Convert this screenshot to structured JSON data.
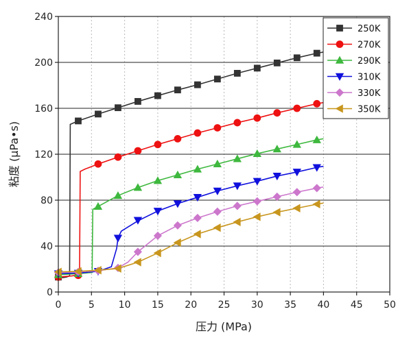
{
  "chart_data": {
    "type": "line",
    "title": "",
    "xlabel": "压力 (MPa)",
    "ylabel": "粘度 (μPa•s)",
    "xlim": [
      0,
      50
    ],
    "ylim": [
      0,
      240
    ],
    "xticks": [
      0,
      5,
      10,
      15,
      20,
      25,
      30,
      35,
      40,
      45,
      50
    ],
    "yticks": [
      0,
      40,
      80,
      120,
      160,
      200,
      240
    ],
    "grid": true,
    "legend_position": "top-right",
    "series": [
      {
        "name": "250K",
        "color": "#333333",
        "marker": "square",
        "line": [
          [
            0,
            12
          ],
          [
            1.2,
            13
          ],
          [
            1.7,
            14
          ],
          [
            1.8,
            146
          ],
          [
            3,
            149
          ],
          [
            6,
            155
          ],
          [
            9,
            160.5
          ],
          [
            12,
            166
          ],
          [
            15,
            171
          ],
          [
            18,
            176
          ],
          [
            21,
            180.5
          ],
          [
            24,
            185.5
          ],
          [
            27,
            190.5
          ],
          [
            30,
            195
          ],
          [
            33,
            199.5
          ],
          [
            36,
            204
          ],
          [
            39,
            208
          ],
          [
            40,
            209
          ]
        ],
        "markers": [
          [
            0,
            13
          ],
          [
            3,
            149
          ],
          [
            6,
            155
          ],
          [
            9,
            160.5
          ],
          [
            12,
            166
          ],
          [
            15,
            171
          ],
          [
            18,
            176
          ],
          [
            21,
            180.5
          ],
          [
            24,
            185.5
          ],
          [
            27,
            190.5
          ],
          [
            30,
            195
          ],
          [
            33,
            199.5
          ],
          [
            36,
            204
          ],
          [
            39,
            208
          ]
        ]
      },
      {
        "name": "270K",
        "color": "#ee1111",
        "marker": "circle",
        "line": [
          [
            0,
            13
          ],
          [
            2,
            14
          ],
          [
            3.2,
            15
          ],
          [
            3.3,
            105
          ],
          [
            4,
            107
          ],
          [
            6,
            111.5
          ],
          [
            9,
            117.5
          ],
          [
            12,
            123
          ],
          [
            15,
            128.5
          ],
          [
            18,
            133.5
          ],
          [
            21,
            138.5
          ],
          [
            24,
            143
          ],
          [
            27,
            147.5
          ],
          [
            30,
            151.5
          ],
          [
            33,
            156
          ],
          [
            36,
            160
          ],
          [
            39,
            164
          ],
          [
            40,
            165
          ]
        ],
        "markers": [
          [
            0,
            13
          ],
          [
            3,
            14.5
          ],
          [
            6,
            111.5
          ],
          [
            9,
            117.5
          ],
          [
            12,
            123
          ],
          [
            15,
            128.5
          ],
          [
            18,
            133.5
          ],
          [
            21,
            138.5
          ],
          [
            24,
            143
          ],
          [
            27,
            147.5
          ],
          [
            30,
            151.5
          ],
          [
            33,
            156
          ],
          [
            36,
            160
          ],
          [
            39,
            164
          ]
        ]
      },
      {
        "name": "290K",
        "color": "#3eb83e",
        "marker": "triangle-up",
        "line": [
          [
            0,
            15
          ],
          [
            3,
            16
          ],
          [
            5.1,
            17
          ],
          [
            5.2,
            72
          ],
          [
            6,
            74.5
          ],
          [
            9,
            84
          ],
          [
            12,
            91
          ],
          [
            15,
            97
          ],
          [
            18,
            102
          ],
          [
            21,
            107
          ],
          [
            24,
            111.5
          ],
          [
            27,
            116
          ],
          [
            30,
            120.5
          ],
          [
            33,
            124.5
          ],
          [
            36,
            128.5
          ],
          [
            39,
            132.5
          ],
          [
            40,
            133.5
          ]
        ],
        "markers": [
          [
            0,
            15
          ],
          [
            3,
            16
          ],
          [
            6,
            74.5
          ],
          [
            9,
            84
          ],
          [
            12,
            91
          ],
          [
            15,
            97
          ],
          [
            18,
            102
          ],
          [
            21,
            107
          ],
          [
            24,
            111.5
          ],
          [
            27,
            116
          ],
          [
            30,
            120.5
          ],
          [
            33,
            124.5
          ],
          [
            36,
            128.5
          ],
          [
            39,
            132.5
          ]
        ]
      },
      {
        "name": "310K",
        "color": "#1010dd",
        "marker": "triangle-down",
        "line": [
          [
            0,
            16
          ],
          [
            3,
            16.5
          ],
          [
            6,
            18
          ],
          [
            8,
            22
          ],
          [
            8.8,
            38
          ],
          [
            9,
            47
          ],
          [
            9.5,
            53
          ],
          [
            12,
            62
          ],
          [
            15,
            70.5
          ],
          [
            18,
            77
          ],
          [
            21,
            82.5
          ],
          [
            24,
            88
          ],
          [
            27,
            92.5
          ],
          [
            30,
            96.5
          ],
          [
            33,
            101
          ],
          [
            36,
            104.5
          ],
          [
            39,
            108.5
          ],
          [
            40,
            109.5
          ]
        ],
        "markers": [
          [
            0,
            16
          ],
          [
            3,
            16.5
          ],
          [
            6,
            18
          ],
          [
            9,
            47
          ],
          [
            12,
            62.5
          ],
          [
            15,
            70.5
          ],
          [
            18,
            77
          ],
          [
            21,
            82.5
          ],
          [
            24,
            88
          ],
          [
            27,
            92.5
          ],
          [
            30,
            96.5
          ],
          [
            33,
            101
          ],
          [
            36,
            104.5
          ],
          [
            39,
            108.5
          ]
        ]
      },
      {
        "name": "330K",
        "color": "#cc77cc",
        "marker": "diamond",
        "line": [
          [
            0,
            17
          ],
          [
            3,
            17.5
          ],
          [
            6,
            18.5
          ],
          [
            9,
            21
          ],
          [
            10.5,
            26
          ],
          [
            12,
            35
          ],
          [
            13.5,
            42
          ],
          [
            15,
            49
          ],
          [
            18,
            58
          ],
          [
            21,
            64.5
          ],
          [
            24,
            70
          ],
          [
            27,
            75
          ],
          [
            30,
            79
          ],
          [
            33,
            83
          ],
          [
            36,
            87
          ],
          [
            39,
            90.5
          ],
          [
            40,
            91.5
          ]
        ],
        "markers": [
          [
            0,
            17
          ],
          [
            3,
            17.5
          ],
          [
            6,
            18.5
          ],
          [
            9,
            21
          ],
          [
            12,
            35
          ],
          [
            15,
            49
          ],
          [
            18,
            58
          ],
          [
            21,
            64.5
          ],
          [
            24,
            70
          ],
          [
            27,
            75
          ],
          [
            30,
            79
          ],
          [
            33,
            83
          ],
          [
            36,
            87
          ],
          [
            39,
            90.5
          ]
        ]
      },
      {
        "name": "350K",
        "color": "#c8961e",
        "marker": "triangle-left",
        "line": [
          [
            0,
            17.5
          ],
          [
            3,
            18
          ],
          [
            6,
            19
          ],
          [
            9,
            20.5
          ],
          [
            12,
            26
          ],
          [
            15,
            34
          ],
          [
            18,
            43
          ],
          [
            21,
            50.5
          ],
          [
            24,
            56
          ],
          [
            27,
            61
          ],
          [
            30,
            65.5
          ],
          [
            33,
            69.5
          ],
          [
            36,
            73
          ],
          [
            39,
            76.5
          ],
          [
            40,
            77.5
          ]
        ],
        "markers": [
          [
            0,
            17.5
          ],
          [
            3,
            18
          ],
          [
            6,
            19
          ],
          [
            9,
            20.5
          ],
          [
            12,
            26
          ],
          [
            15,
            34
          ],
          [
            18,
            43
          ],
          [
            21,
            50.5
          ],
          [
            24,
            56
          ],
          [
            27,
            61
          ],
          [
            30,
            65.5
          ],
          [
            33,
            69.5
          ],
          [
            36,
            73
          ],
          [
            39,
            76.5
          ]
        ]
      }
    ]
  }
}
